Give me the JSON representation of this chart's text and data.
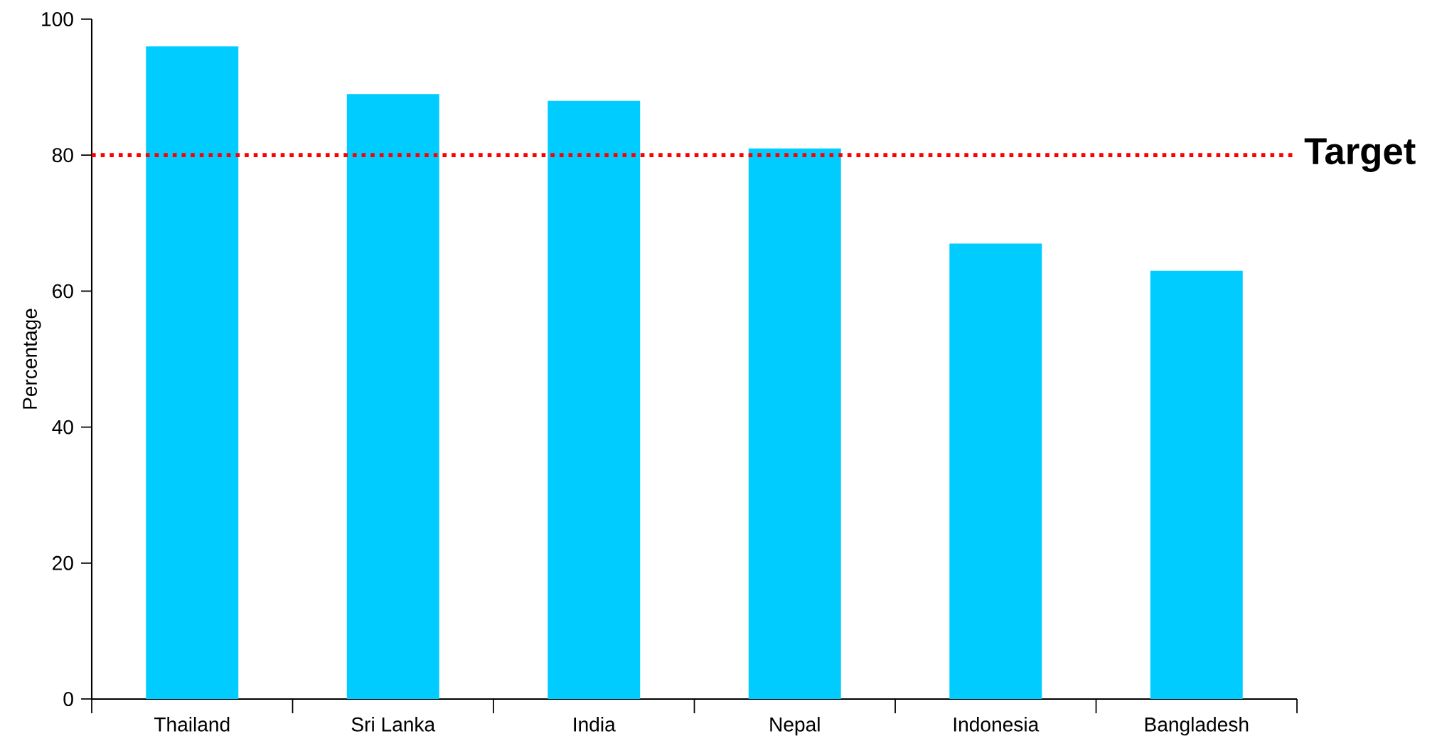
{
  "chart_data": {
    "type": "bar",
    "ylabel": "Percentage",
    "categories": [
      "Thailand",
      "Sri Lanka",
      "India",
      "Nepal",
      "Indonesia",
      "Bangladesh"
    ],
    "values": [
      96,
      89,
      88,
      81,
      67,
      63
    ],
    "color": "#00ccff",
    "ylim": [
      0,
      100
    ],
    "yticks": [
      0,
      20,
      40,
      60,
      80,
      100
    ],
    "grid": false,
    "ref_lines": [
      {
        "axis": "y",
        "value": 80,
        "label": "Target",
        "color": "#ff0000",
        "line_style": "dotted"
      }
    ]
  }
}
